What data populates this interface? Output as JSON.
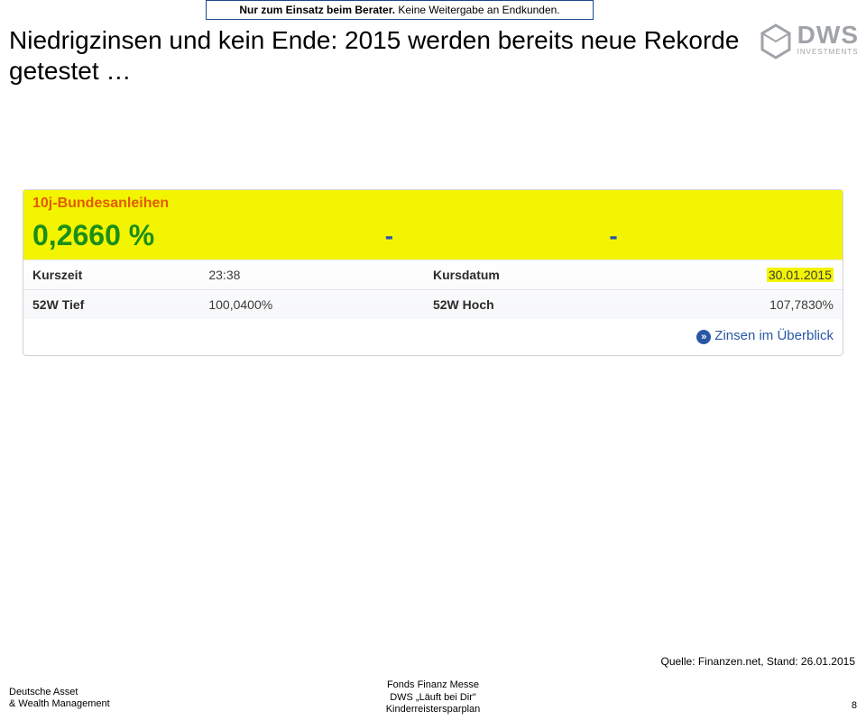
{
  "banner": {
    "bold": "Nur zum Einsatz beim Berater.",
    "rest": " Keine Weitergabe an Endkunden."
  },
  "title": "Niedrigzinsen und kein Ende: 2015 werden bereits neue Rekorde getestet …",
  "logo": {
    "brand": "DWS",
    "sub": "INVESTMENTS",
    "hex_stroke": "#a0a3a8"
  },
  "widget": {
    "instrument": "10j-Bundesanleihen",
    "rate": "0,2660 %",
    "dash": "-",
    "rows": [
      {
        "lab": "Kurszeit",
        "val": "23:38",
        "lab2": "Kursdatum",
        "val2": "30.01.2015",
        "val2_highlight": true
      },
      {
        "lab": "52W Tief",
        "val": "100,0400%",
        "lab2": "52W Hoch",
        "val2": "107,7830%",
        "val2_highlight": false
      }
    ],
    "link": "Zinsen im Überblick",
    "colors": {
      "highlight_bg": "#f3f400",
      "instrument_color": "#e25a00",
      "rate_color": "#1a8f1a",
      "link_color": "#2a57a5",
      "border": "#d2d3d7"
    }
  },
  "source": "Quelle: Finanzen.net, Stand: 26.01.2015",
  "footer": {
    "left1": "Deutsche Asset",
    "left2": "& Wealth Management",
    "center1": "Fonds Finanz Messe",
    "center2": "DWS „Läuft bei Dir\"",
    "center3": "Kinderreistersparplan",
    "page": "8"
  }
}
